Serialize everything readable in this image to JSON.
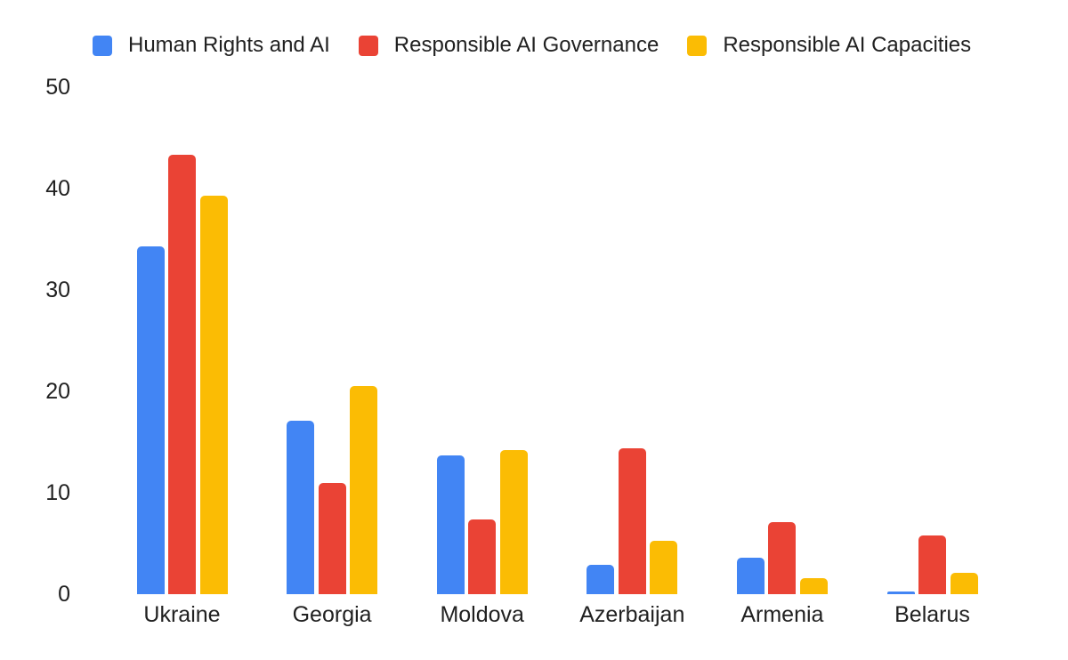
{
  "chart_data": {
    "type": "bar",
    "title": "",
    "xlabel": "",
    "ylabel": "",
    "categories": [
      "Ukraine",
      "Georgia",
      "Moldova",
      "Azerbaijan",
      "Armenia",
      "Belarus"
    ],
    "series": [
      {
        "name": "Human Rights and AI",
        "color": "#4285F4",
        "values": [
          34.3,
          17.1,
          13.7,
          2.9,
          3.6,
          0.3
        ]
      },
      {
        "name": "Responsible AI Governance",
        "color": "#EA4335",
        "values": [
          43.3,
          11.0,
          7.4,
          14.4,
          7.1,
          5.8
        ]
      },
      {
        "name": "Responsible AI Capacities",
        "color": "#FBBC04",
        "values": [
          39.3,
          20.5,
          14.2,
          5.3,
          1.6,
          2.1
        ]
      }
    ],
    "ylim": [
      0,
      50
    ],
    "yticks": [
      "0",
      "10",
      "20",
      "30",
      "40",
      "50"
    ],
    "grid": false,
    "legend_position": "top",
    "text_color": "#212121",
    "background_color": "#ffffff"
  }
}
